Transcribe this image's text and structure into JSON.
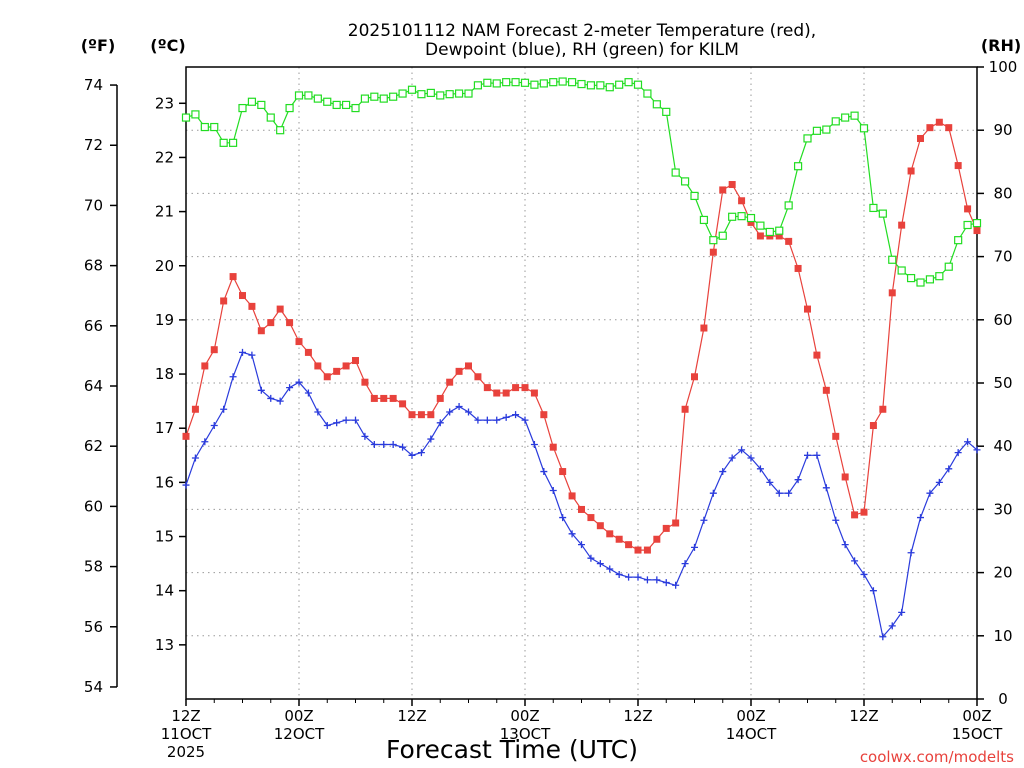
{
  "chart_data": {
    "type": "line",
    "title_lines": [
      "2025101112 NAM Forecast 2-meter Temperature (red),",
      "Dewpoint (blue), RH (green) for KILM"
    ],
    "unit_labels": {
      "fahrenheit": "(ºF)",
      "celsius": "(ºC)",
      "rh": "(RH)"
    },
    "xlabel": "Forecast Time (UTC)",
    "source": "coolwx.com/modelts",
    "x_unit": "forecast hour",
    "xlim": [
      0,
      84
    ],
    "x_ticks": [
      {
        "hour": 0,
        "lines": [
          "12Z",
          "11OCT",
          "2025"
        ]
      },
      {
        "hour": 12,
        "lines": [
          "00Z",
          "12OCT"
        ]
      },
      {
        "hour": 24,
        "lines": [
          "12Z"
        ]
      },
      {
        "hour": 36,
        "lines": [
          "00Z",
          "13OCT"
        ]
      },
      {
        "hour": 48,
        "lines": [
          "12Z"
        ]
      },
      {
        "hour": 60,
        "lines": [
          "00Z",
          "14OCT"
        ]
      },
      {
        "hour": 72,
        "lines": [
          "12Z"
        ]
      },
      {
        "hour": 84,
        "lines": [
          "00Z",
          "15OCT"
        ]
      }
    ],
    "axes": {
      "fahrenheit": {
        "ticks": [
          54,
          56,
          58,
          60,
          62,
          64,
          66,
          68,
          70,
          72,
          74
        ],
        "range": [
          53.6,
          74.6
        ]
      },
      "celsius": {
        "ticks": [
          13,
          14,
          15,
          16,
          17,
          18,
          19,
          20,
          21,
          22,
          23
        ],
        "range": [
          12,
          23.67
        ]
      },
      "rh": {
        "ticks": [
          0,
          10,
          20,
          30,
          40,
          50,
          60,
          70,
          80,
          90,
          100
        ],
        "range": [
          0,
          100
        ]
      }
    },
    "grid": true,
    "series": [
      {
        "name": "Temperature",
        "color": "#e8423c",
        "marker": "filled-square",
        "axis": "celsius",
        "x": [
          0,
          1,
          2,
          3,
          4,
          5,
          6,
          7,
          8,
          9,
          10,
          11,
          12,
          13,
          14,
          15,
          16,
          17,
          18,
          19,
          20,
          21,
          22,
          23,
          24,
          25,
          26,
          27,
          28,
          29,
          30,
          31,
          32,
          33,
          34,
          35,
          36,
          37,
          38,
          39,
          40,
          41,
          42,
          43,
          44,
          45,
          46,
          47,
          48,
          49,
          50,
          51,
          52,
          53,
          54,
          55,
          56,
          57,
          58,
          59,
          60,
          61,
          62,
          63,
          64,
          65,
          66,
          67,
          68,
          69,
          70,
          71,
          72,
          73,
          74,
          75,
          76,
          77,
          78,
          79,
          80,
          81,
          82,
          83,
          84
        ],
        "values": [
          16.85,
          17.35,
          18.15,
          18.45,
          19.35,
          19.8,
          19.45,
          19.25,
          18.8,
          18.95,
          19.2,
          18.95,
          18.6,
          18.4,
          18.15,
          17.95,
          18.05,
          18.15,
          18.25,
          17.85,
          17.55,
          17.55,
          17.55,
          17.45,
          17.25,
          17.25,
          17.25,
          17.55,
          17.85,
          18.05,
          18.15,
          17.95,
          17.75,
          17.65,
          17.65,
          17.75,
          17.75,
          17.65,
          17.25,
          16.65,
          16.2,
          15.75,
          15.5,
          15.35,
          15.2,
          15.05,
          14.95,
          14.85,
          14.75,
          14.75,
          14.95,
          15.15,
          15.25,
          17.35,
          17.95,
          18.85,
          20.25,
          21.4,
          21.5,
          21.2,
          20.8,
          20.55,
          20.55,
          20.55,
          20.45,
          19.95,
          19.2,
          18.35,
          17.7,
          16.85,
          16.1,
          15.4,
          15.45,
          17.05,
          17.35,
          19.5,
          20.75,
          21.75,
          22.35,
          22.55,
          22.65,
          22.55,
          21.85,
          21.05,
          20.65
        ]
      },
      {
        "name": "Dewpoint",
        "color": "#2a3bdc",
        "marker": "plus",
        "axis": "celsius",
        "x": [
          0,
          1,
          2,
          3,
          4,
          5,
          6,
          7,
          8,
          9,
          10,
          11,
          12,
          13,
          14,
          15,
          16,
          17,
          18,
          19,
          20,
          21,
          22,
          23,
          24,
          25,
          26,
          27,
          28,
          29,
          30,
          31,
          32,
          33,
          34,
          35,
          36,
          37,
          38,
          39,
          40,
          41,
          42,
          43,
          44,
          45,
          46,
          47,
          48,
          49,
          50,
          51,
          52,
          53,
          54,
          55,
          56,
          57,
          58,
          59,
          60,
          61,
          62,
          63,
          64,
          65,
          66,
          67,
          68,
          69,
          70,
          71,
          72,
          73,
          74,
          75,
          76,
          77,
          78,
          79,
          80,
          81,
          82,
          83,
          84
        ],
        "values": [
          15.95,
          16.45,
          16.75,
          17.05,
          17.35,
          17.95,
          18.4,
          18.35,
          17.7,
          17.55,
          17.5,
          17.75,
          17.85,
          17.65,
          17.3,
          17.05,
          17.1,
          17.15,
          17.15,
          16.85,
          16.7,
          16.7,
          16.7,
          16.65,
          16.5,
          16.55,
          16.8,
          17.1,
          17.3,
          17.4,
          17.3,
          17.15,
          17.15,
          17.15,
          17.2,
          17.25,
          17.15,
          16.7,
          16.2,
          15.85,
          15.35,
          15.05,
          14.85,
          14.6,
          14.5,
          14.4,
          14.3,
          14.25,
          14.25,
          14.2,
          14.2,
          14.15,
          14.1,
          14.5,
          14.8,
          15.3,
          15.8,
          16.2,
          16.45,
          16.6,
          16.45,
          16.25,
          16.0,
          15.8,
          15.8,
          16.05,
          16.5,
          16.5,
          15.9,
          15.3,
          14.85,
          14.55,
          14.3,
          14.0,
          13.15,
          13.35,
          13.6,
          14.7,
          15.35,
          15.8,
          16.0,
          16.25,
          16.55,
          16.75,
          16.6
        ]
      },
      {
        "name": "RH",
        "color": "#22dd22",
        "marker": "open-square",
        "axis": "rh",
        "x": [
          0,
          1,
          2,
          3,
          4,
          5,
          6,
          7,
          8,
          9,
          10,
          11,
          12,
          13,
          14,
          15,
          16,
          17,
          18,
          19,
          20,
          21,
          22,
          23,
          24,
          25,
          26,
          27,
          28,
          29,
          30,
          31,
          32,
          33,
          34,
          35,
          36,
          37,
          38,
          39,
          40,
          41,
          42,
          43,
          44,
          45,
          46,
          47,
          48,
          49,
          50,
          51,
          52,
          53,
          54,
          55,
          56,
          57,
          58,
          59,
          60,
          61,
          62,
          63,
          64,
          65,
          66,
          67,
          68,
          69,
          70,
          71,
          72,
          73,
          74,
          75,
          76,
          77,
          78,
          79,
          80,
          81,
          82,
          83,
          84
        ],
        "values": [
          92,
          92.5,
          90.5,
          90.5,
          88,
          88,
          93.5,
          94.5,
          94,
          92,
          90,
          93.5,
          95.5,
          95.5,
          95,
          94.5,
          94,
          94,
          93.5,
          95,
          95.3,
          95,
          95.3,
          95.8,
          96.4,
          95.7,
          95.9,
          95.5,
          95.7,
          95.8,
          95.8,
          97.1,
          97.5,
          97.4,
          97.6,
          97.6,
          97.5,
          97.2,
          97.4,
          97.6,
          97.7,
          97.6,
          97.3,
          97.1,
          97.1,
          96.8,
          97.2,
          97.6,
          97.2,
          95.8,
          94.1,
          92.9,
          83.3,
          81.9,
          79.6,
          75.8,
          72.6,
          73.3,
          76.3,
          76.4,
          76.1,
          74.9,
          73.9,
          74.1,
          78.1,
          84.3,
          88.7,
          89.9,
          90.1,
          91.4,
          92.0,
          92.3,
          90.3,
          77.7,
          76.8,
          69.5,
          67.8,
          66.6,
          65.9,
          66.4,
          66.9,
          68.4,
          72.6,
          75.0,
          75.3
        ]
      }
    ]
  }
}
